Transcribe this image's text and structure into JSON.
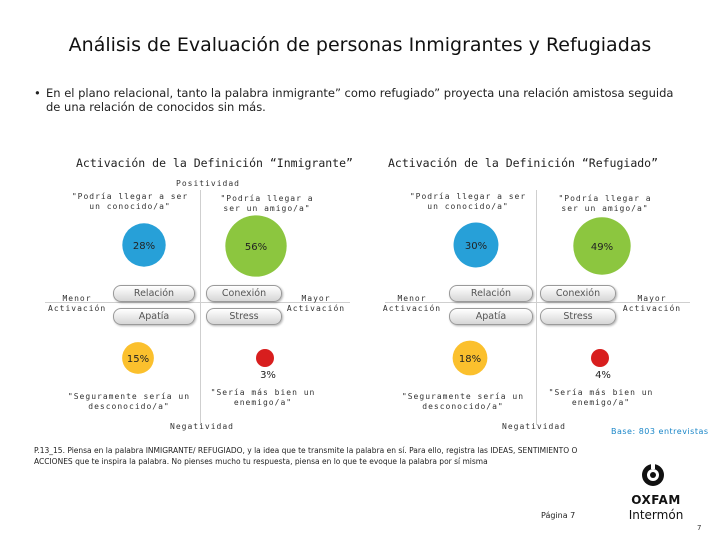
{
  "title": "Análisis de Evaluación de personas Inmigrantes y Refugiadas",
  "bullet": {
    "symbol": "•",
    "text": "En el plano relacional, tanto la palabra inmigrante” como refugiado” proyecta una relación amistosa seguida de una relación de conocidos sin más."
  },
  "chart_data": [
    {
      "type": "scatter",
      "title": "Activación de la Definición “Inmigrante”",
      "axis_labels": {
        "top": "Positividad",
        "bottom": "Negatividad",
        "left": "Menor Activación",
        "right": "Mayor Activación"
      },
      "axis_words": {
        "left_top": "Relación",
        "left_bottom": "Apatía",
        "right_top": "Conexión",
        "right_bottom": "Stress"
      },
      "quadrants": [
        {
          "label": "\"Podría llegar a ser un conocido/a\"",
          "value": 28,
          "display": "28%",
          "color": "#27a0d8"
        },
        {
          "label": "\"Podría llegar a ser un amigo/a\"",
          "value": 56,
          "display": "56%",
          "color": "#8cc63f"
        },
        {
          "label": "\"Seguramente sería un desconocido/a\"",
          "value": 15,
          "display": "15%",
          "color": "#fbc02d"
        },
        {
          "label": "\"Sería más bien un enemigo/a\"",
          "value": 3,
          "display": "3%",
          "color": "#d81e1e"
        }
      ]
    },
    {
      "type": "scatter",
      "title": "Activación de la Definición “Refugiado”",
      "axis_labels": {
        "top": "",
        "bottom": "Negatividad",
        "left": "Menor Activación",
        "right": "Mayor Activación"
      },
      "axis_words": {
        "left_top": "Relación",
        "left_bottom": "Apatía",
        "right_top": "Conexión",
        "right_bottom": "Stress"
      },
      "quadrants": [
        {
          "label": "\"Podría llegar a ser un conocido/a\"",
          "value": 30,
          "display": "30%",
          "color": "#27a0d8"
        },
        {
          "label": "\"Podría llegar a ser un amigo/a\"",
          "value": 49,
          "display": "49%",
          "color": "#8cc63f"
        },
        {
          "label": "\"Seguramente sería un desconocido/a\"",
          "value": 18,
          "display": "18%",
          "color": "#fbc02d"
        },
        {
          "label": "\"Sería más bien un enemigo/a\"",
          "value": 4,
          "display": "4%",
          "color": "#d81e1e"
        }
      ]
    }
  ],
  "footnote": "P.13_15. Piensa en la palabra INMIGRANTE/ REFUGIADO, y la idea que te transmite la palabra en sí. Para ello, registra las IDEAS, SENTIMIENTO O ACCIONES que te inspira la palabra. No pienses mucho tu respuesta, piensa en lo que te evoque la palabra por sí misma",
  "base": "Base: 803 entrevistas",
  "page_label": "Página 7",
  "page_number": "7",
  "logo": {
    "line1": "OXFAM",
    "line2": "Intermón"
  }
}
